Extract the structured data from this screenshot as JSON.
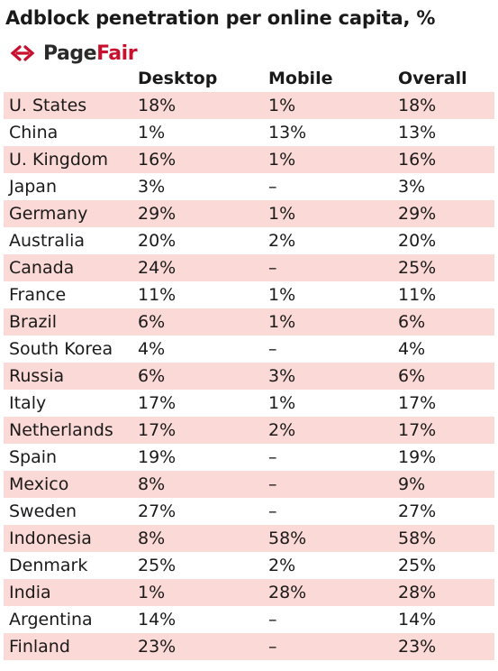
{
  "title": "Adblock penetration per online capita, %",
  "logo": {
    "icon": "pagefair-logo-icon",
    "page": "Page",
    "fair": "Fair",
    "brand_color": "#c8102e"
  },
  "colors": {
    "row_shade": "#fbd9d6"
  },
  "chart_data": {
    "type": "table",
    "columns": [
      "",
      "Desktop",
      "Mobile",
      "Overall"
    ],
    "rows": [
      [
        "U. States",
        "18%",
        "1%",
        "18%"
      ],
      [
        "China",
        "1%",
        "13%",
        "13%"
      ],
      [
        "U. Kingdom",
        "16%",
        "1%",
        "16%"
      ],
      [
        "Japan",
        "3%",
        "–",
        "3%"
      ],
      [
        "Germany",
        "29%",
        "1%",
        "29%"
      ],
      [
        "Australia",
        "20%",
        "2%",
        "20%"
      ],
      [
        "Canada",
        "24%",
        "–",
        "25%"
      ],
      [
        "France",
        "11%",
        "1%",
        "11%"
      ],
      [
        "Brazil",
        "6%",
        "1%",
        "6%"
      ],
      [
        "South Korea",
        "4%",
        "–",
        "4%"
      ],
      [
        "Russia",
        "6%",
        "3%",
        "6%"
      ],
      [
        "Italy",
        "17%",
        "1%",
        "17%"
      ],
      [
        "Netherlands",
        "17%",
        "2%",
        "17%"
      ],
      [
        "Spain",
        "19%",
        "–",
        "19%"
      ],
      [
        "Mexico",
        "8%",
        "–",
        "9%"
      ],
      [
        "Sweden",
        "27%",
        "–",
        "27%"
      ],
      [
        "Indonesia",
        "8%",
        "58%",
        "58%"
      ],
      [
        "Denmark",
        "25%",
        "2%",
        "25%"
      ],
      [
        "India",
        "1%",
        "28%",
        "28%"
      ],
      [
        "Argentina",
        "14%",
        "–",
        "14%"
      ],
      [
        "Finland",
        "23%",
        "–",
        "23%"
      ]
    ]
  }
}
